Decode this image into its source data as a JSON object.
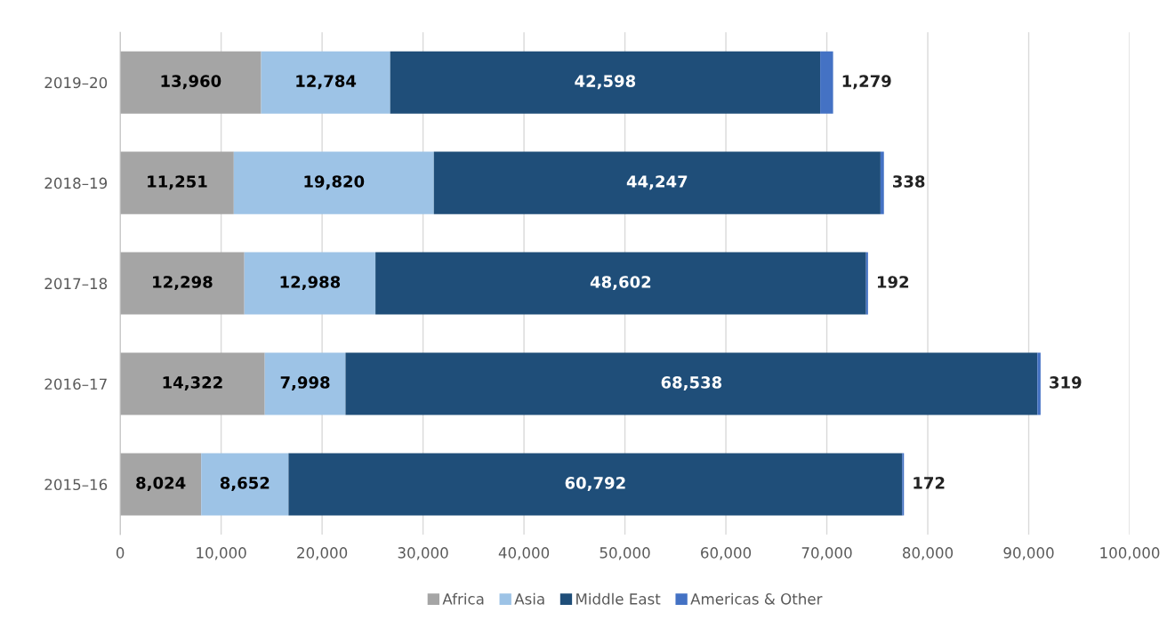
{
  "chart_data": {
    "type": "bar",
    "orientation": "horizontal",
    "stacked": true,
    "grid": "x",
    "legend": "bottom",
    "categories": [
      "2019–20",
      "2018–19",
      "2017–18",
      "2016–17",
      "2015–16"
    ],
    "series": [
      {
        "name": "Africa",
        "color": "#a5a5a5",
        "values": [
          13960,
          11251,
          12298,
          14322,
          8024
        ],
        "value_labels": [
          "13,960",
          "11,251",
          "12,298",
          "14,322",
          "8,024"
        ]
      },
      {
        "name": "Asia",
        "color": "#9dc3e6",
        "values": [
          12784,
          19820,
          12988,
          7998,
          8652
        ],
        "value_labels": [
          "12,784",
          "19,820",
          "12,988",
          "7,998",
          "8,652"
        ]
      },
      {
        "name": "Middle East",
        "color": "#1f4e79",
        "values": [
          42598,
          44247,
          48602,
          68538,
          60792
        ],
        "value_labels": [
          "42,598",
          "44,247",
          "48,602",
          "68,538",
          "60,792"
        ]
      },
      {
        "name": "Americas & Other",
        "color": "#4472c4",
        "values": [
          1279,
          338,
          192,
          319,
          172
        ],
        "value_labels": [
          "1,279",
          "338",
          "192",
          "319",
          "172"
        ]
      }
    ],
    "xlim": [
      0,
      100000
    ],
    "xticks": [
      0,
      {
        "value": 10000,
        "label": "10,000"
      },
      {
        "value": 20000,
        "label": "20,000"
      },
      {
        "value": 30000,
        "label": "30,000"
      },
      {
        "value": 40000,
        "label": "40,000"
      },
      {
        "value": 50000,
        "label": "50,000"
      },
      {
        "value": 60000,
        "label": "60,000"
      },
      {
        "value": 70000,
        "label": "70,000"
      },
      {
        "value": 80000,
        "label": "80,000"
      },
      {
        "value": 90000,
        "label": "90,000"
      },
      {
        "value": 100000,
        "label": "100,000"
      }
    ]
  }
}
